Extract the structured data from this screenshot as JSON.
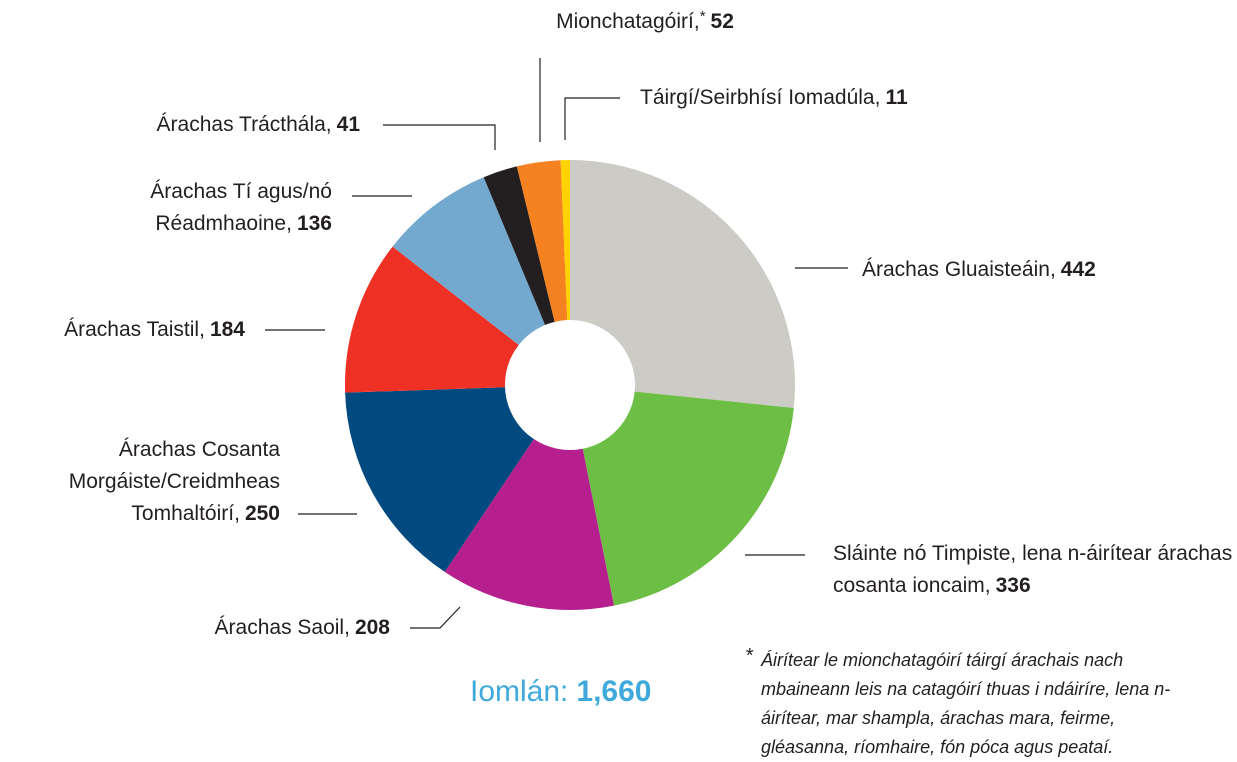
{
  "chart_data": {
    "type": "donut",
    "categories": [
      "Árachas Gluaisteáin",
      "Sláinte nó Timpiste, lena n-áirítear árachas cosanta ioncaim",
      "Árachas Saoil",
      "Árachas Cosanta Morgáiste/Creidmheas Tomhaltóirí",
      "Árachas Taistil",
      "Árachas Tí agus/nó Réadmhaoine",
      "Árachas Trácthála",
      "Mionchatagóirí",
      "Táirgí/Seirbhísí Iomadúla"
    ],
    "values": [
      442,
      336,
      208,
      250,
      184,
      136,
      41,
      52,
      11
    ],
    "colors": [
      "#cccbc6",
      "#6dbe45",
      "#b51f8e",
      "#004a80",
      "#ee3124",
      "#74a9cf",
      "#231f20",
      "#f58220",
      "#ffd200"
    ],
    "total_label": "Iomlán:",
    "total": "1,660",
    "footnote": {
      "marker": "*",
      "applies_to": 7,
      "text": "Áirítear le mionchatagóirí táirgí árachais nach mbaineann leis na catagóirí thuas i ndáiríre, lena n-áirítear, mar shampla, árachas mara, feirme, gléasanna, ríomhaire, fón póca agus peataí."
    }
  }
}
